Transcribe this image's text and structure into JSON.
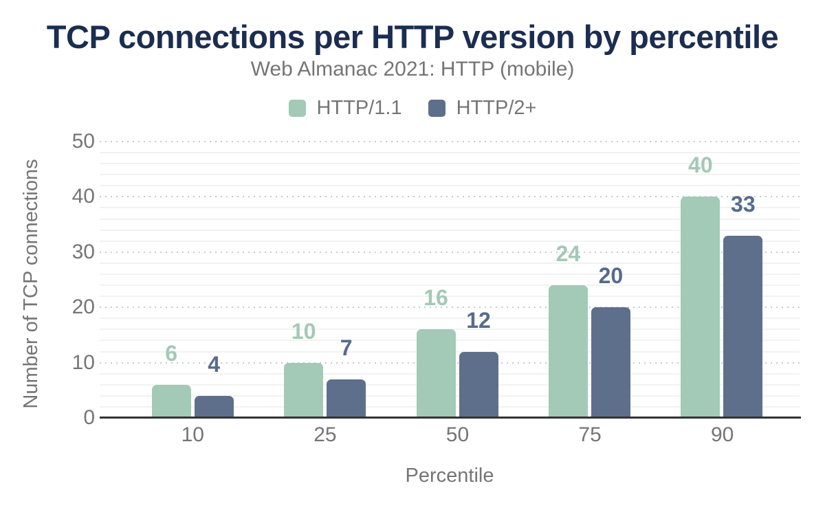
{
  "header": {
    "title": "TCP connections per HTTP version by percentile",
    "subtitle": "Web Almanac 2021: HTTP (mobile)"
  },
  "colors": {
    "title_text": "#1b2d50",
    "muted_text": "#757575",
    "axis_line": "#333333",
    "gridline_major_dotted": "#c9c9c9",
    "gridline_minor": "#f2f2f2",
    "background": "#ffffff"
  },
  "chart_data": {
    "type": "bar",
    "title": "TCP connections per HTTP version by percentile",
    "subtitle": "Web Almanac 2021: HTTP (mobile)",
    "categories": [
      "10",
      "25",
      "50",
      "75",
      "90"
    ],
    "series": [
      {
        "name": "HTTP/1.1",
        "color": "#a3c9b7",
        "label_color": "#a3c9b7",
        "values": [
          6,
          10,
          16,
          24,
          40
        ]
      },
      {
        "name": "HTTP/2+",
        "color": "#5d6f8b",
        "label_color": "#566b8c",
        "values": [
          4,
          7,
          12,
          20,
          33
        ]
      }
    ],
    "xlabel": "Percentile",
    "ylabel": "Number of TCP connections",
    "ylim": [
      0,
      50
    ],
    "yticks": [
      0,
      10,
      20,
      30,
      40,
      50
    ],
    "minor_gridline_step": 2,
    "grid": true,
    "legend_position": "top",
    "value_labels": true
  }
}
